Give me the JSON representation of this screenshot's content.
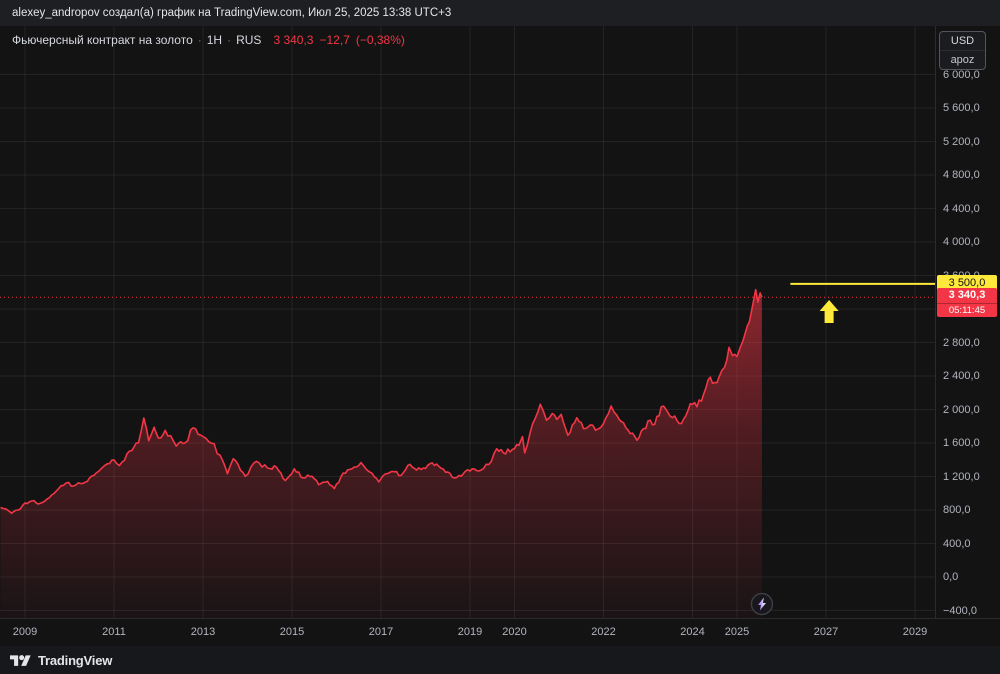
{
  "attribution": "alexey_andropov создал(а) график на TradingView.com, Июл 25, 2025 13:38 UTC+3",
  "legend": {
    "symbol_title": "Фьючерсный контракт на золото",
    "separator": "·",
    "interval": "1H",
    "exchange": "RUS",
    "last_price": "3 340,3",
    "change": "−12,7",
    "change_pct": "(−0,38%)"
  },
  "currency_box": {
    "currency": "USD",
    "unit": "apoz"
  },
  "price_scale": {
    "labels": [
      {
        "v": 6000,
        "t": "6 000,0"
      },
      {
        "v": 5600,
        "t": "5 600,0"
      },
      {
        "v": 5200,
        "t": "5 200,0"
      },
      {
        "v": 4800,
        "t": "4 800,0"
      },
      {
        "v": 4400,
        "t": "4 400,0"
      },
      {
        "v": 4000,
        "t": "4 000,0"
      },
      {
        "v": 3600,
        "t": "3 600,0"
      },
      {
        "v": 2800,
        "t": "2 800,0"
      },
      {
        "v": 2400,
        "t": "2 400,0"
      },
      {
        "v": 2000,
        "t": "2 000,0"
      },
      {
        "v": 1600,
        "t": "1 600,0"
      },
      {
        "v": 1200,
        "t": "1 200,0"
      },
      {
        "v": 800,
        "t": "800,0"
      },
      {
        "v": 400,
        "t": "400,0"
      },
      {
        "v": 0,
        "t": "0,0"
      },
      {
        "v": -400,
        "t": "−400,0"
      }
    ],
    "current_price": {
      "value": 3340.3,
      "label": "3 340,3",
      "countdown": "05:11:45",
      "color": "#f23645"
    },
    "level_line": {
      "value": 3500,
      "label": "3 500,0",
      "start_year": 2026.2,
      "color": "#ffe93b"
    }
  },
  "time_scale": {
    "labels": [
      {
        "y": 2009,
        "t": "2009"
      },
      {
        "y": 2011,
        "t": "2011"
      },
      {
        "y": 2013,
        "t": "2013"
      },
      {
        "y": 2015,
        "t": "2015"
      },
      {
        "y": 2017,
        "t": "2017"
      },
      {
        "y": 2019,
        "t": "2019"
      },
      {
        "y": 2020,
        "t": "2020"
      },
      {
        "y": 2022,
        "t": "2022"
      },
      {
        "y": 2024,
        "t": "2024"
      },
      {
        "y": 2025,
        "t": "2025"
      },
      {
        "y": 2027,
        "t": "2027"
      },
      {
        "y": 2029,
        "t": "2029"
      }
    ]
  },
  "footer": {
    "brand": "TradingView"
  },
  "colors": {
    "accent_red": "#f23645",
    "accent_yellow": "#ffe93b",
    "grid": "rgba(255,255,255,0.07)",
    "axis_text": "#b2b5be"
  },
  "chart_data": {
    "type": "area",
    "title": "Фьючерсный контракт на золото",
    "interval": "1H",
    "exchange": "RUS",
    "currency": "USD",
    "unit": "apoz",
    "x_range": [
      2008.45,
      2029.5
    ],
    "ylim": [
      -400,
      6000
    ],
    "y_step": 400,
    "grid": true,
    "legend_position": "top-left",
    "line_color": "#f23645",
    "last_value": 3340.3,
    "change": -12.7,
    "change_pct": -0.38,
    "series": [
      {
        "name": "Фьючерсный контракт на золото",
        "points": [
          [
            2008.45,
            830
          ],
          [
            2008.7,
            762
          ],
          [
            2008.85,
            800
          ],
          [
            2009.0,
            885
          ],
          [
            2009.15,
            908
          ],
          [
            2009.3,
            872
          ],
          [
            2009.5,
            932
          ],
          [
            2009.65,
            995
          ],
          [
            2009.92,
            1120
          ],
          [
            2010.1,
            1088
          ],
          [
            2010.3,
            1116
          ],
          [
            2010.45,
            1182
          ],
          [
            2010.6,
            1242
          ],
          [
            2010.85,
            1352
          ],
          [
            2011.0,
            1398
          ],
          [
            2011.12,
            1330
          ],
          [
            2011.35,
            1505
          ],
          [
            2011.55,
            1602
          ],
          [
            2011.67,
            1898
          ],
          [
            2011.73,
            1772
          ],
          [
            2011.78,
            1628
          ],
          [
            2011.9,
            1788
          ],
          [
            2012.0,
            1658
          ],
          [
            2012.15,
            1752
          ],
          [
            2012.4,
            1562
          ],
          [
            2012.6,
            1602
          ],
          [
            2012.78,
            1782
          ],
          [
            2013.0,
            1678
          ],
          [
            2013.25,
            1592
          ],
          [
            2013.32,
            1472
          ],
          [
            2013.45,
            1382
          ],
          [
            2013.55,
            1232
          ],
          [
            2013.68,
            1412
          ],
          [
            2013.95,
            1202
          ],
          [
            2014.2,
            1382
          ],
          [
            2014.45,
            1302
          ],
          [
            2014.65,
            1312
          ],
          [
            2014.85,
            1152
          ],
          [
            2015.05,
            1292
          ],
          [
            2015.25,
            1182
          ],
          [
            2015.45,
            1202
          ],
          [
            2015.6,
            1102
          ],
          [
            2015.8,
            1142
          ],
          [
            2015.95,
            1055
          ],
          [
            2016.15,
            1242
          ],
          [
            2016.35,
            1292
          ],
          [
            2016.55,
            1366
          ],
          [
            2016.75,
            1252
          ],
          [
            2016.95,
            1136
          ],
          [
            2017.1,
            1232
          ],
          [
            2017.3,
            1256
          ],
          [
            2017.45,
            1212
          ],
          [
            2017.65,
            1346
          ],
          [
            2017.8,
            1276
          ],
          [
            2017.95,
            1302
          ],
          [
            2018.1,
            1352
          ],
          [
            2018.3,
            1322
          ],
          [
            2018.5,
            1252
          ],
          [
            2018.65,
            1182
          ],
          [
            2018.85,
            1232
          ],
          [
            2019.05,
            1292
          ],
          [
            2019.25,
            1276
          ],
          [
            2019.42,
            1342
          ],
          [
            2019.6,
            1532
          ],
          [
            2019.75,
            1482
          ],
          [
            2019.95,
            1522
          ],
          [
            2020.1,
            1572
          ],
          [
            2020.18,
            1676
          ],
          [
            2020.23,
            1482
          ],
          [
            2020.35,
            1722
          ],
          [
            2020.58,
            2062
          ],
          [
            2020.72,
            1872
          ],
          [
            2020.85,
            1952
          ],
          [
            2020.95,
            1882
          ],
          [
            2021.05,
            1942
          ],
          [
            2021.2,
            1692
          ],
          [
            2021.4,
            1902
          ],
          [
            2021.55,
            1772
          ],
          [
            2021.7,
            1816
          ],
          [
            2021.82,
            1752
          ],
          [
            2022.0,
            1832
          ],
          [
            2022.17,
            2042
          ],
          [
            2022.3,
            1932
          ],
          [
            2022.45,
            1842
          ],
          [
            2022.6,
            1712
          ],
          [
            2022.75,
            1632
          ],
          [
            2022.9,
            1772
          ],
          [
            2023.05,
            1872
          ],
          [
            2023.15,
            1822
          ],
          [
            2023.3,
            2032
          ],
          [
            2023.45,
            1962
          ],
          [
            2023.6,
            1922
          ],
          [
            2023.75,
            1832
          ],
          [
            2023.9,
            1992
          ],
          [
            2024.0,
            2062
          ],
          [
            2024.1,
            2032
          ],
          [
            2024.25,
            2182
          ],
          [
            2024.35,
            2352
          ],
          [
            2024.5,
            2322
          ],
          [
            2024.6,
            2392
          ],
          [
            2024.72,
            2502
          ],
          [
            2024.82,
            2742
          ],
          [
            2024.9,
            2642
          ],
          [
            2025.0,
            2632
          ],
          [
            2025.08,
            2752
          ],
          [
            2025.18,
            2902
          ],
          [
            2025.28,
            3052
          ],
          [
            2025.35,
            3242
          ],
          [
            2025.42,
            3432
          ],
          [
            2025.47,
            3282
          ],
          [
            2025.52,
            3392
          ],
          [
            2025.56,
            3340.3
          ]
        ]
      }
    ],
    "annotations": [
      {
        "type": "horizontal_ray",
        "value": 3500,
        "from_year": 2026.2,
        "color": "#ffe93b",
        "label": "3 500,0"
      },
      {
        "type": "arrow_up",
        "x_year": 2027.07,
        "tip_value": 3307,
        "color": "#ffe93b"
      },
      {
        "type": "current_price_dotted_line",
        "value": 3340.3,
        "color": "#f23645"
      }
    ]
  }
}
